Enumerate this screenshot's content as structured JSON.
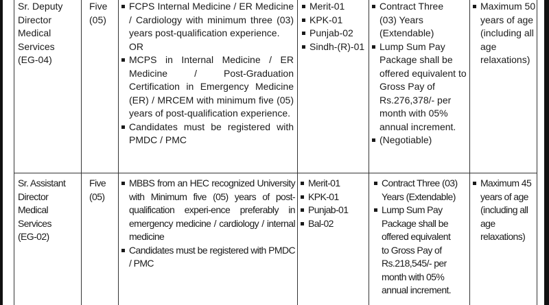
{
  "rows": [
    {
      "post": [
        "Sr. Deputy",
        "Director",
        "Medical",
        "Services",
        "(EG-04)"
      ],
      "positions": [
        "Five",
        "(05)"
      ],
      "qualification": {
        "item1": "FCPS Internal Medicine / ER Medicine / Cardiology with minimum three (03) years post-qualification experience.",
        "or": "OR",
        "item2": "MCPS in Internal Medicine / ER Medicine / Post-Graduation Certification in Emergency Medicine (ER) / MRCEM with minimum five (05) years of post-qualification experience.",
        "item3": "Candidates must be registered with PMDC / PMC"
      },
      "quota": [
        "Merit-01",
        "KPK-01",
        "Punjab-02",
        "Sindh-(R)-01"
      ],
      "terms": [
        "Contract Three (03) Years (Extendable)",
        "Lump Sum Pay Package shall be offered equivalent to Gross Pay of Rs.276,378/- per month with 05% annual increment.",
        "(Negotiable)"
      ],
      "age": "Maximum 50 years of age (including all age relaxations)"
    },
    {
      "post": [
        "Sr. Assistant",
        "Director",
        "Medical",
        "Services",
        "(EG-02)"
      ],
      "positions": [
        "Five",
        "(05)"
      ],
      "qualification": {
        "item1": "MBBS from an HEC recognized University with Minimum five (05) years of post-qualification experi-ence preferably in emergency medicine / cardiology / internal medicine",
        "item2": "Candidates must be registered with PMDC / PMC"
      },
      "quota": [
        "Merit-01",
        "KPK-01",
        "Punjab-01",
        "Bal-02"
      ],
      "terms": [
        "Contract Three (03) Years (Extendable)",
        "Lump Sum Pay Package shall be offered equivalent to Gross Pay of Rs.218,545/- per month with 05% annual increment."
      ],
      "age": "Maximum 45 years of age (including all age relaxations)"
    }
  ]
}
